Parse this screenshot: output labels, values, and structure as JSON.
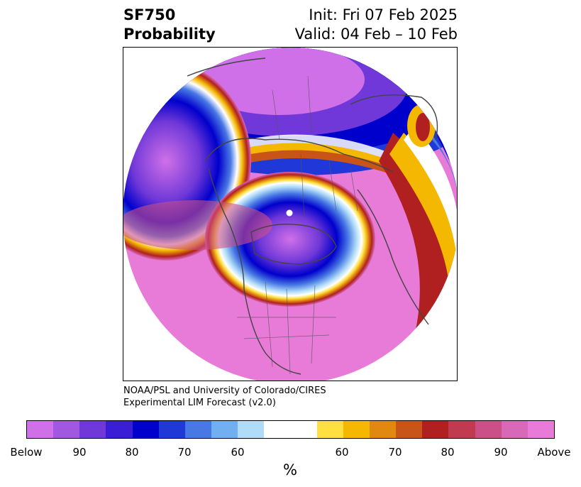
{
  "title": {
    "left_line1": "SF750",
    "left_line2": "Probability",
    "right_line1": "Init: Fri 07 Feb 2025",
    "right_line2": "Valid: 04 Feb – 10 Feb"
  },
  "credit": {
    "line1": "NOAA/PSL and University of Colorado/CIRES",
    "line2": "Experimental LIM Forecast (v2.0)"
  },
  "colorbar": {
    "unit_label": "%",
    "colors": [
      "#d070e8",
      "#a058e0",
      "#7038d8",
      "#3a1ed6",
      "#0000cc",
      "#2038d8",
      "#4878e4",
      "#70b0f0",
      "#b0dcf8",
      "#ffffff",
      "#ffe040",
      "#f4b800",
      "#e08810",
      "#c85418",
      "#b02020",
      "#c03a50",
      "#cc5088",
      "#d868b8",
      "#e87ad8"
    ],
    "tick_labels": [
      "Below",
      "90",
      "80",
      "70",
      "60",
      "60",
      "70",
      "80",
      "90",
      "Above"
    ]
  }
}
